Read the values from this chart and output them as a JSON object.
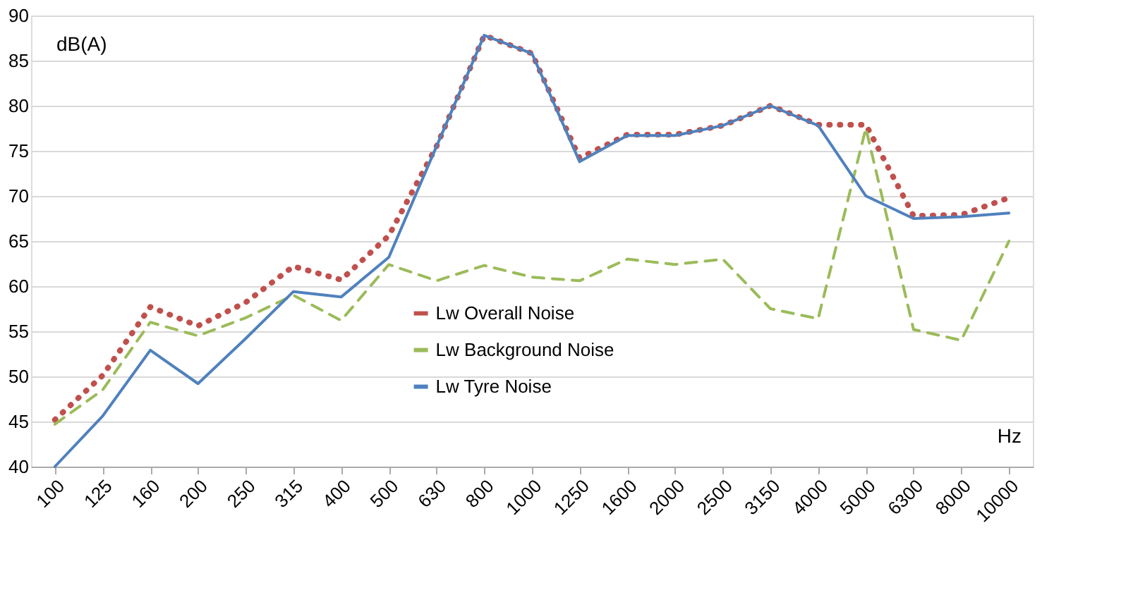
{
  "chart_data": {
    "type": "line",
    "xlabel": "Hz",
    "ylabel": "dB(A)",
    "categories": [
      "100",
      "125",
      "160",
      "200",
      "250",
      "315",
      "400",
      "500",
      "630",
      "800",
      "1000",
      "1250",
      "1600",
      "2000",
      "2500",
      "3150",
      "4000",
      "5000",
      "6300",
      "8000",
      "10000"
    ],
    "series": [
      {
        "name": "Lw Overall Noise",
        "color": "#c0504d",
        "line_style": "dotted",
        "values": [
          45.2,
          50.1,
          57.7,
          55.6,
          58.2,
          62.2,
          60.7,
          65.6,
          75.5,
          87.8,
          85.8,
          74.2,
          76.8,
          76.8,
          77.8,
          80,
          77.9,
          77.9,
          67.8,
          67.9,
          69.8
        ]
      },
      {
        "name": "Lw Background Noise",
        "color": "#9bbb59",
        "line_style": "dashed",
        "values": [
          44.7,
          48.5,
          56,
          54.5,
          56.5,
          59,
          56.2,
          62.4,
          60.6,
          62.3,
          61,
          60.6,
          63,
          62.4,
          63,
          57.5,
          56.4,
          77.5,
          55.2,
          54,
          65
        ]
      },
      {
        "name": "Lw Tyre Noise",
        "color": "#4f81bd",
        "line_style": "solid",
        "values": [
          40,
          45.6,
          52.9,
          49.2,
          54.2,
          59.4,
          58.8,
          63.2,
          75.5,
          87.8,
          85.8,
          73.8,
          76.7,
          76.7,
          77.8,
          80,
          77.8,
          70,
          67.5,
          67.7,
          68.1
        ]
      }
    ],
    "ylim": [
      40,
      90
    ],
    "yticks": [
      40,
      45,
      50,
      55,
      60,
      65,
      70,
      75,
      80,
      85,
      90
    ],
    "grid": "y",
    "legend": "bottom",
    "marker": "none"
  }
}
